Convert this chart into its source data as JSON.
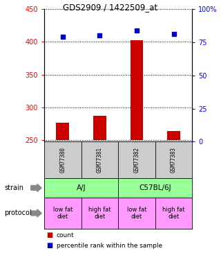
{
  "title": "GDS2909 / 1422509_at",
  "samples": [
    "GSM77380",
    "GSM77381",
    "GSM77382",
    "GSM77383"
  ],
  "bar_values": [
    277,
    288,
    403,
    264
  ],
  "bar_base": 250,
  "percentile_values": [
    79,
    80,
    84,
    81
  ],
  "ylim_left": [
    248,
    450
  ],
  "ylim_right": [
    0,
    100
  ],
  "yticks_left": [
    250,
    300,
    350,
    400,
    450
  ],
  "yticks_right": [
    0,
    25,
    50,
    75,
    100
  ],
  "ytick_labels_right": [
    "0",
    "25",
    "50",
    "75",
    "100%"
  ],
  "bar_color": "#cc0000",
  "percentile_color": "#0000cc",
  "strain_labels": [
    "A/J",
    "C57BL/6J"
  ],
  "strain_color": "#99ff99",
  "protocol_labels": [
    "low fat\ndiet",
    "high fat\ndiet",
    "low fat\ndiet",
    "high fat\ndiet"
  ],
  "protocol_color": "#ff99ff",
  "sample_box_color": "#cccccc",
  "legend_count_color": "#cc0000",
  "legend_pct_color": "#0000cc",
  "legend_count_label": "count",
  "legend_pct_label": "percentile rank within the sample",
  "strain_arrow_label": "strain",
  "protocol_arrow_label": "protocol",
  "background_color": "#ffffff"
}
